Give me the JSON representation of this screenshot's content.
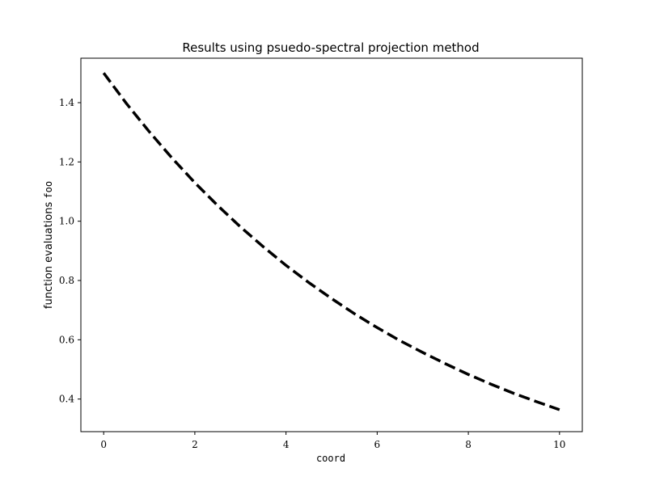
{
  "chart_data": {
    "type": "line",
    "title": "Results using psuedo-spectral projection method",
    "xlabel": "coord",
    "ylabel_text": "function evaluations ",
    "ylabel_code": "foo",
    "xlim": [
      -0.5,
      10.5
    ],
    "ylim": [
      0.29,
      1.55
    ],
    "xticks": [
      0,
      2,
      4,
      6,
      8,
      10
    ],
    "xtick_labels": [
      "0",
      "2",
      "4",
      "6",
      "8",
      "10"
    ],
    "yticks": [
      0.4,
      0.6,
      0.8,
      1.0,
      1.2,
      1.4
    ],
    "ytick_labels": [
      "0.4",
      "0.6",
      "0.8",
      "1.0",
      "1.2",
      "1.4"
    ],
    "grid": false,
    "series": [
      {
        "color": "#000000",
        "style": "dashed",
        "x": [
          0,
          0.5,
          1,
          1.5,
          2,
          2.5,
          3,
          3.5,
          4,
          4.5,
          5,
          5.5,
          6,
          6.5,
          7,
          7.5,
          8,
          8.5,
          9,
          9.5,
          10
        ],
        "y": [
          1.5,
          1.397,
          1.302,
          1.213,
          1.13,
          1.053,
          0.981,
          0.914,
          0.851,
          0.793,
          0.739,
          0.688,
          0.641,
          0.597,
          0.557,
          0.519,
          0.483,
          0.45,
          0.419,
          0.391,
          0.364
        ]
      }
    ]
  }
}
